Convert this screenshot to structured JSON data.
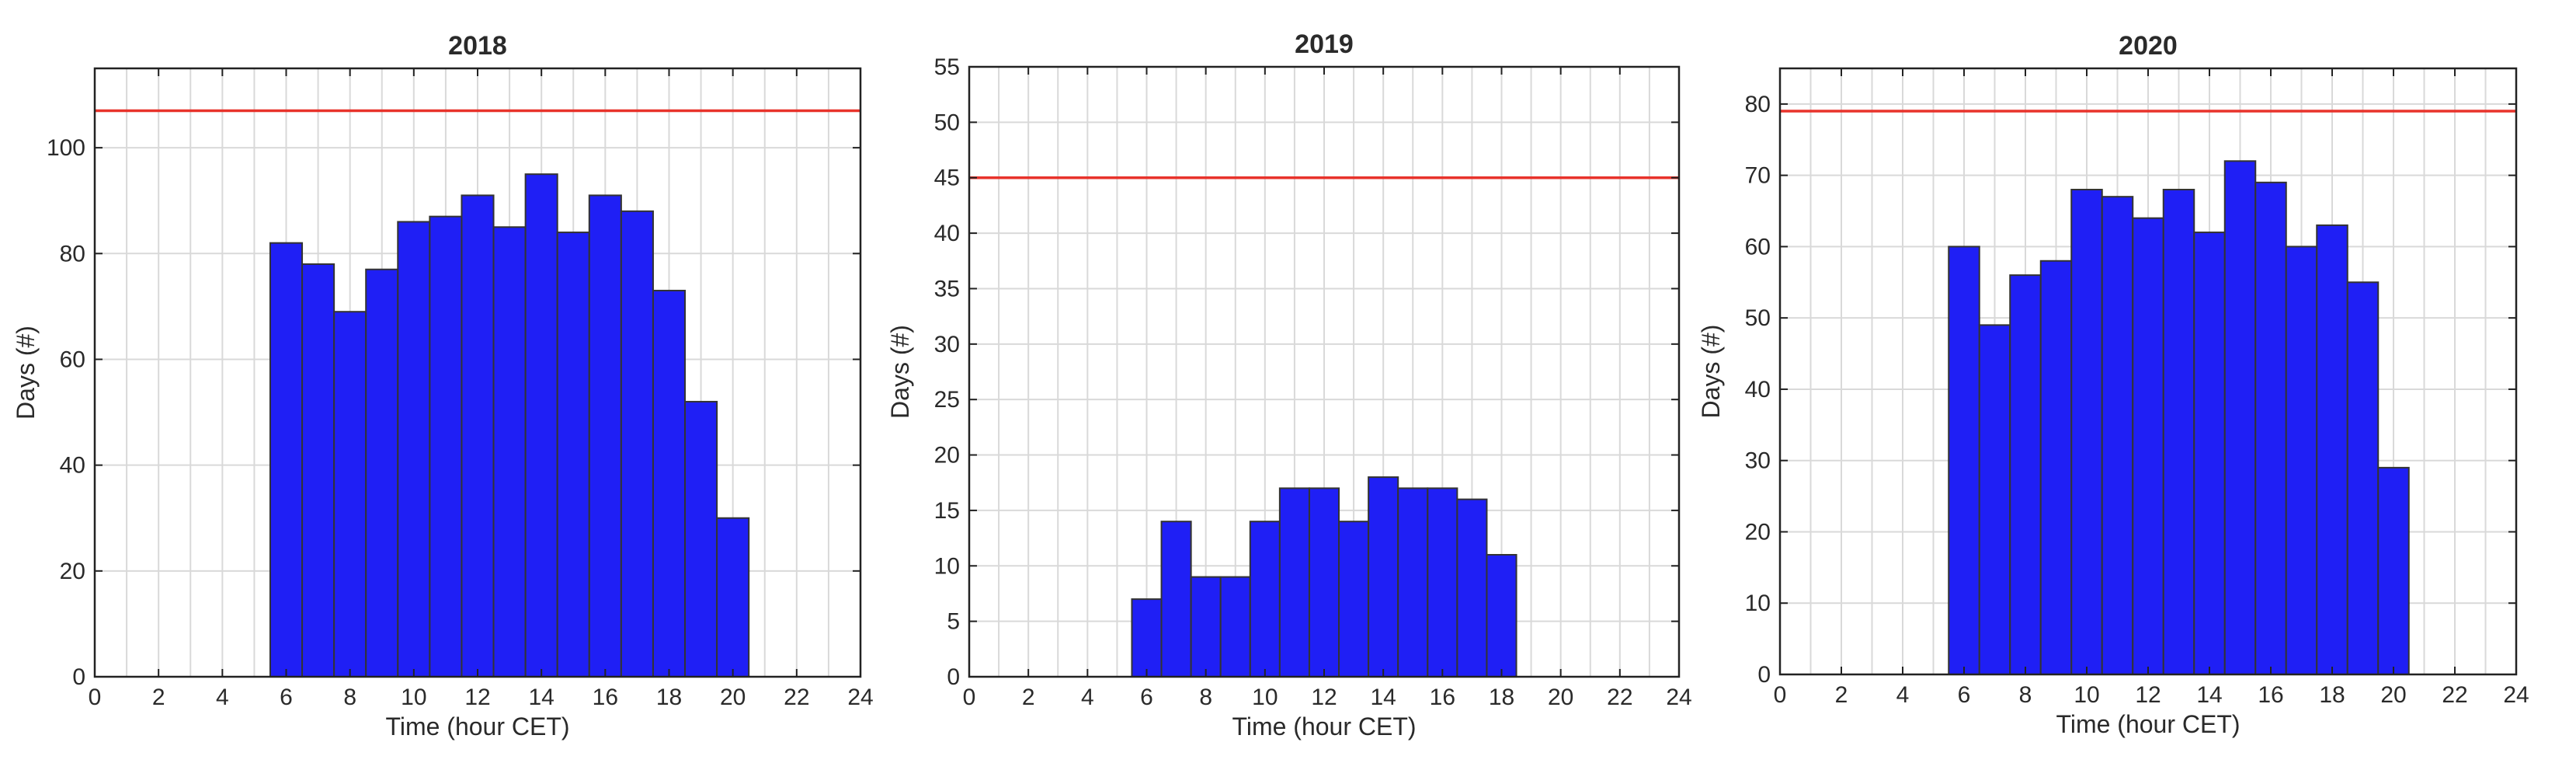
{
  "figure": {
    "bar_color": "#1f1ff5",
    "reference_line_color": "#e8332b"
  },
  "chart_data": [
    {
      "type": "bar",
      "title": "2018",
      "xlabel": "Time (hour CET)",
      "ylabel": "Days (#)",
      "xlim": [
        0,
        24
      ],
      "ylim": [
        0,
        115
      ],
      "xticks": [
        0,
        2,
        4,
        6,
        8,
        10,
        12,
        14,
        16,
        18,
        20,
        22,
        24
      ],
      "yticks": [
        0,
        20,
        40,
        60,
        80,
        100
      ],
      "grid": true,
      "bins": [
        6,
        7,
        8,
        9,
        10,
        11,
        12,
        13,
        14,
        15,
        16,
        17,
        18,
        19,
        20
      ],
      "values": [
        82,
        78,
        69,
        77,
        86,
        87,
        91,
        85,
        95,
        84,
        91,
        88,
        73,
        52,
        30
      ],
      "reference_line": 107
    },
    {
      "type": "bar",
      "title": "2019",
      "xlabel": "Time (hour CET)",
      "ylabel": "Days (#)",
      "xlim": [
        0,
        24
      ],
      "ylim": [
        0,
        55
      ],
      "xticks": [
        0,
        2,
        4,
        6,
        8,
        10,
        12,
        14,
        16,
        18,
        20,
        22,
        24
      ],
      "yticks": [
        0,
        5,
        10,
        15,
        20,
        25,
        30,
        35,
        40,
        45,
        50,
        55
      ],
      "grid": true,
      "bins": [
        6,
        7,
        8,
        9,
        10,
        11,
        12,
        13,
        14,
        15,
        16,
        17,
        18
      ],
      "values": [
        7,
        14,
        9,
        9,
        14,
        17,
        17,
        14,
        18,
        17,
        17,
        16,
        11
      ],
      "reference_line": 45
    },
    {
      "type": "bar",
      "title": "2020",
      "xlabel": "Time (hour CET)",
      "ylabel": "Days (#)",
      "xlim": [
        0,
        24
      ],
      "ylim": [
        0,
        85
      ],
      "xticks": [
        0,
        2,
        4,
        6,
        8,
        10,
        12,
        14,
        16,
        18,
        20,
        22,
        24
      ],
      "yticks": [
        0,
        10,
        20,
        30,
        40,
        50,
        60,
        70,
        80
      ],
      "grid": true,
      "bins": [
        6,
        7,
        8,
        9,
        10,
        11,
        12,
        13,
        14,
        15,
        16,
        17,
        18,
        19,
        20
      ],
      "values": [
        60,
        49,
        56,
        58,
        68,
        67,
        64,
        68,
        62,
        72,
        69,
        60,
        63,
        55,
        29
      ],
      "reference_line": 79
    }
  ]
}
